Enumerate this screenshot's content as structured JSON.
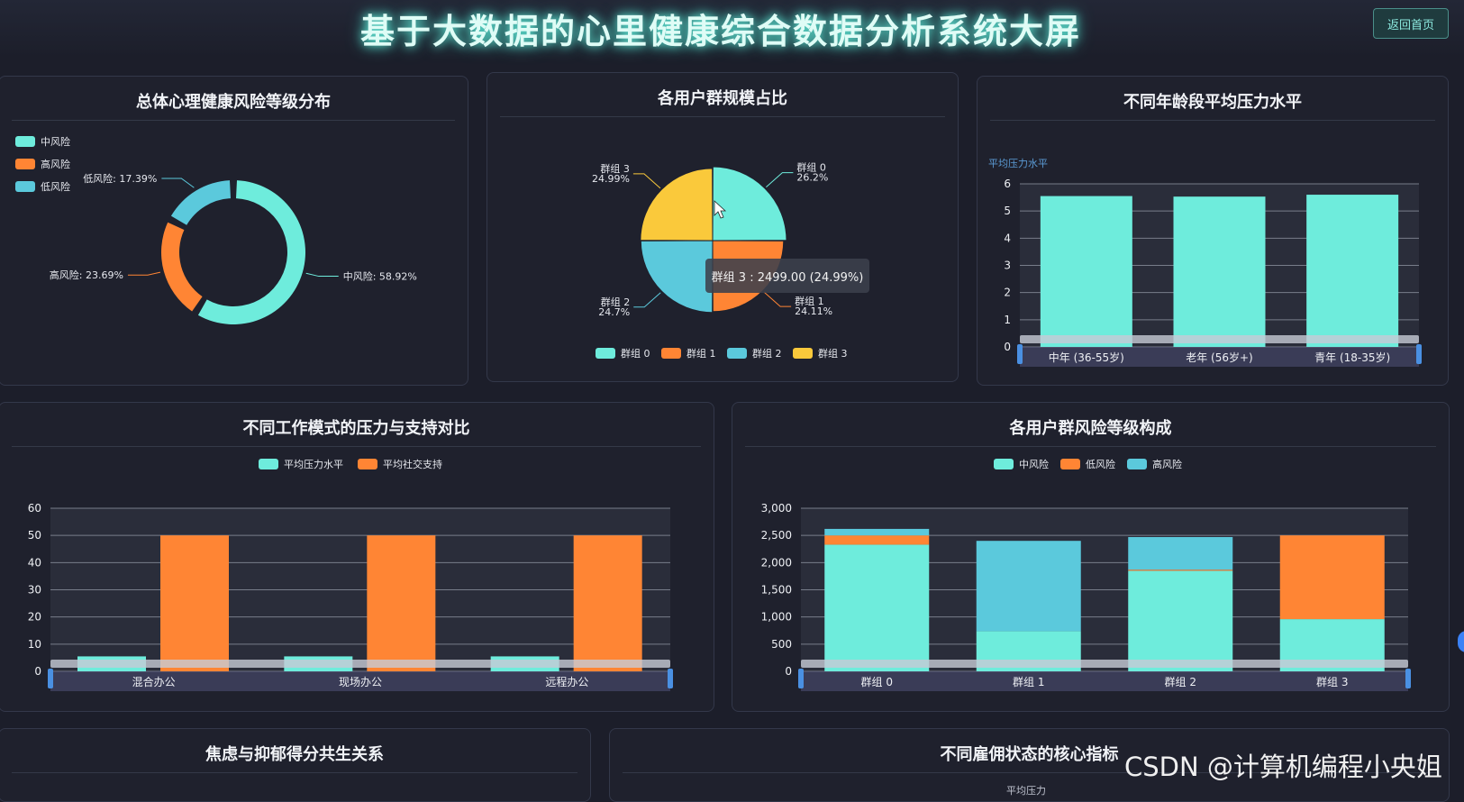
{
  "header": {
    "title": "基于大数据的心里健康综合数据分析系统大屏",
    "back_label": "返回首页"
  },
  "panels": {
    "risk_distribution": {
      "title": "总体心理健康风险等级分布"
    },
    "group_share": {
      "title": "各用户群规模占比"
    },
    "age_stress": {
      "title": "不同年龄段平均压力水平"
    },
    "work_mode": {
      "title": "不同工作模式的压力与支持对比"
    },
    "group_risk": {
      "title": "各用户群风险等级构成"
    },
    "anxiety": {
      "title": "焦虑与抑郁得分共生关系"
    },
    "employment": {
      "title": "不同雇佣状态的核心指标",
      "axis_hint": "平均压力"
    }
  },
  "tooltip": {
    "text": "群组 3 : 2499.00 (24.99%)"
  },
  "watermark": "CSDN @计算机编程小央姐",
  "colors": {
    "teal": "#6eecdc",
    "orange": "#ff8534",
    "blue": "#5bc9dc",
    "yellow": "#fac93b"
  },
  "chart_data": [
    {
      "id": "risk_distribution",
      "type": "pie",
      "donut": true,
      "legend": [
        "中风险",
        "高风险",
        "低风险"
      ],
      "slices": [
        {
          "name": "中风险",
          "value": 58.92,
          "label": "中风险: 58.92%",
          "color": "#6eecdc"
        },
        {
          "name": "高风险",
          "value": 23.69,
          "label": "高风险: 23.69%",
          "color": "#ff8534"
        },
        {
          "name": "低风险",
          "value": 17.39,
          "label": "低风险: 17.39%",
          "color": "#5bc9dc"
        }
      ]
    },
    {
      "id": "group_share",
      "type": "pie",
      "rose": true,
      "legend": [
        "群组 0",
        "群组 1",
        "群组 2",
        "群组 3"
      ],
      "slices": [
        {
          "name": "群组 0",
          "value": 26.2,
          "pct": "26.2%",
          "color": "#6eecdc"
        },
        {
          "name": "群组 1",
          "value": 24.11,
          "pct": "24.11%",
          "color": "#ff8534"
        },
        {
          "name": "群组 2",
          "value": 24.7,
          "pct": "24.7%",
          "color": "#5bc9dc"
        },
        {
          "name": "群组 3",
          "value": 24.99,
          "pct": "24.99%",
          "color": "#fac93b"
        }
      ]
    },
    {
      "id": "age_stress",
      "type": "bar",
      "ylabel": "平均压力水平",
      "ylim": [
        0,
        6
      ],
      "yticks": [
        0,
        1,
        2,
        3,
        4,
        5,
        6
      ],
      "categories": [
        "中年 (36-55岁)",
        "老年 (56岁+)",
        "青年 (18-35岁)"
      ],
      "values": [
        5.55,
        5.53,
        5.6
      ]
    },
    {
      "id": "work_mode",
      "type": "bar",
      "ylim": [
        0,
        60
      ],
      "yticks": [
        0,
        10,
        20,
        30,
        40,
        50,
        60
      ],
      "categories": [
        "混合办公",
        "现场办公",
        "远程办公"
      ],
      "series": [
        {
          "name": "平均压力水平",
          "values": [
            5.5,
            5.5,
            5.5
          ],
          "color": "#6eecdc"
        },
        {
          "name": "平均社交支持",
          "values": [
            50,
            50,
            50
          ],
          "color": "#ff8534"
        }
      ]
    },
    {
      "id": "group_risk",
      "type": "bar",
      "stacked": true,
      "ylim": [
        0,
        3000
      ],
      "yticks": [
        "0",
        "500",
        "1,000",
        "1,500",
        "2,000",
        "2,500",
        "3,000"
      ],
      "categories": [
        "群组 0",
        "群组 1",
        "群组 2",
        "群组 3"
      ],
      "series": [
        {
          "name": "中风险",
          "values": [
            2330,
            740,
            1850,
            960
          ],
          "color": "#6eecdc"
        },
        {
          "name": "低风险",
          "values": [
            170,
            0,
            20,
            1540
          ],
          "color": "#ff8534"
        },
        {
          "name": "高风险",
          "values": [
            120,
            1660,
            600,
            0
          ],
          "color": "#5bc9dc"
        }
      ]
    }
  ]
}
